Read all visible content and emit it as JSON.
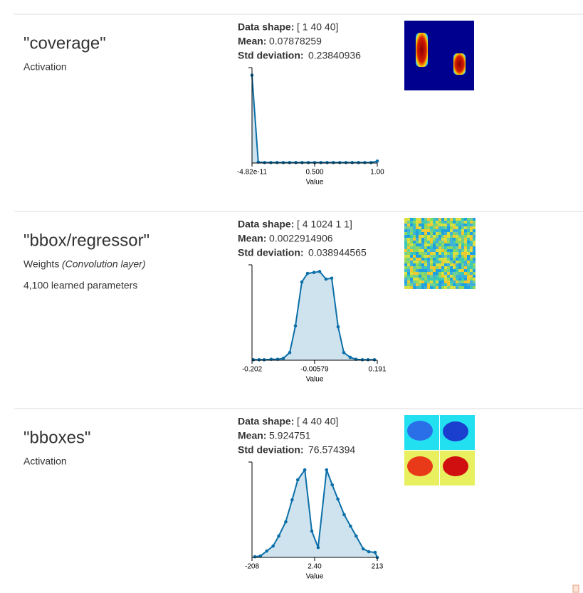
{
  "sections": [
    {
      "title": "\"coverage\"",
      "kind": "Activation",
      "shape_label": "Data shape:",
      "shape": "[ 1 40 40]",
      "mean_label": "Mean:",
      "mean": 0.07878259,
      "std_label": "Std deviation:",
      "std": 0.23840936,
      "chart_data": {
        "type": "area",
        "xlabel": "Value",
        "color": "#0b6fa8",
        "fill": "#cfe3ef",
        "x": [
          0,
          0.05,
          0.1,
          0.15,
          0.2,
          0.25,
          0.3,
          0.35,
          0.4,
          0.45,
          0.5,
          0.55,
          0.6,
          0.65,
          0.7,
          0.75,
          0.8,
          0.85,
          0.9,
          0.95,
          1
        ],
        "values": [
          92,
          1,
          0.5,
          0.5,
          0.5,
          0.5,
          0.5,
          0.5,
          0.5,
          0.5,
          0.5,
          0.5,
          0.5,
          0.5,
          0.5,
          0.5,
          0.5,
          0.5,
          0.5,
          0.5,
          2
        ],
        "xlim": [
          -4.82e-11,
          1
        ],
        "ylim": [
          0,
          100
        ],
        "xticks": [
          {
            "value": -4.82e-11,
            "label": "-4.82e-11"
          },
          {
            "value": 0.5,
            "label": "0.500"
          },
          {
            "value": 1,
            "label": "1.00"
          }
        ]
      }
    },
    {
      "title": "\"bbox/regressor\"",
      "kind": "Weights",
      "layer": "(Convolution layer)",
      "params": "4,100 learned parameters",
      "shape_label": "Data shape:",
      "shape": "[ 4 1024 1 1]",
      "mean_label": "Mean:",
      "mean": 0.0022914906,
      "std_label": "Std deviation:",
      "std": 0.038944565,
      "chart_data": {
        "type": "area",
        "xlabel": "Value",
        "color": "#0b6fa8",
        "fill": "#cfe3ef",
        "x": [
          -0.1975,
          -0.1797,
          -0.164,
          -0.1417,
          -0.1216,
          -0.1037,
          -0.0836,
          -0.0658,
          -0.0457,
          -0.0278,
          -0.0077,
          0.0101,
          0.0302,
          0.0481,
          0.0682,
          0.086,
          0.1061,
          0.124,
          0.1441,
          0.162,
          0.1821
        ],
        "values": [
          0.5,
          0.5,
          0.5,
          1,
          1,
          2,
          8,
          36,
          82,
          91,
          92,
          93,
          85,
          86,
          35,
          8,
          3,
          1,
          0.5,
          0.5,
          0.5
        ],
        "xlim": [
          -0.202,
          0.191
        ],
        "ylim": [
          0,
          100
        ],
        "xticks": [
          -0.202,
          -0.00579,
          0.191
        ]
      }
    },
    {
      "title": "\"bboxes\"",
      "kind": "Activation",
      "shape_label": "Data shape:",
      "shape": "[ 4 40 40]",
      "mean_label": "Mean:",
      "mean": 5.924751,
      "std_label": "Std deviation:",
      "std": 76.574394,
      "chart_data": {
        "type": "area",
        "xlabel": "Value",
        "color": "#0b6fa8",
        "fill": "#cfe3ef",
        "x": [
          -198.5,
          -179.6,
          -158.3,
          -137.1,
          -118.1,
          -94.5,
          -73.2,
          -54.3,
          -30.6,
          -7,
          14.3,
          42.7,
          61.6,
          80.5,
          101.8,
          123.1,
          142,
          165.7,
          184.6,
          205.9,
          213
        ],
        "values": [
          0.7,
          1.5,
          6.7,
          11.9,
          22.4,
          37.3,
          60.4,
          81.3,
          91.8,
          27.6,
          10.4,
          91.8,
          76.1,
          61.2,
          44.8,
          32.8,
          22.4,
          9,
          6,
          5.2,
          0
        ],
        "xlim": [
          -208,
          213
        ],
        "ylim": [
          0,
          100
        ],
        "xticks": [
          -208,
          {
            "value": 2.4,
            "label": "2.40"
          },
          213
        ]
      }
    }
  ]
}
